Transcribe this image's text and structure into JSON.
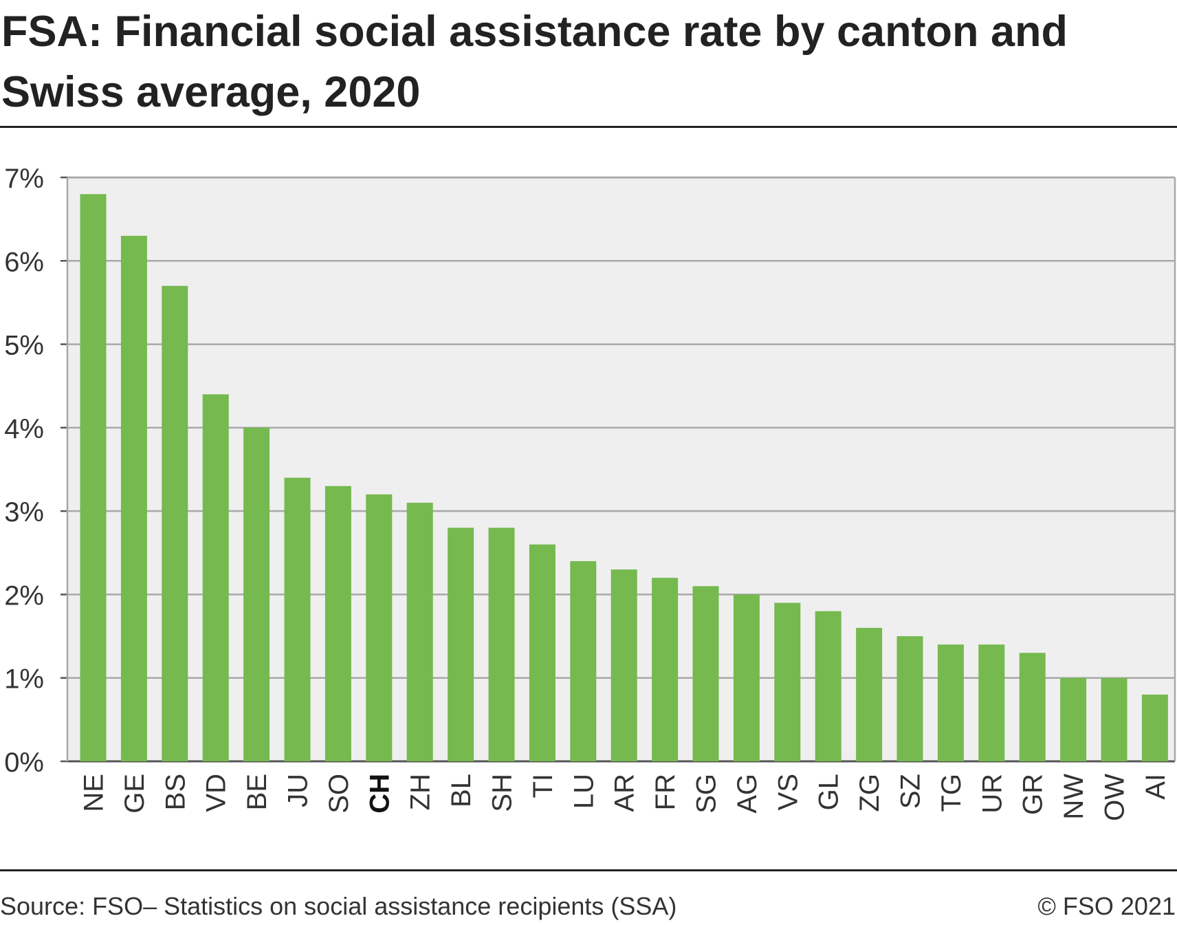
{
  "title": "FSA: Financial social assistance rate by canton and Swiss average, 2020",
  "footer": {
    "source": "Source: FSO– Statistics on social assistance recipients (SSA)",
    "copyright": "© FSO 2021"
  },
  "colors": {
    "bar": "#75b94f",
    "plot_background": "#efefef",
    "gridline": "#a8a8a8",
    "text": "#222222"
  },
  "chart_data": {
    "type": "bar",
    "title": "FSA: Financial social assistance rate by canton and Swiss average, 2020",
    "categories": [
      "NE",
      "GE",
      "BS",
      "VD",
      "BE",
      "JU",
      "SO",
      "CH",
      "ZH",
      "BL",
      "SH",
      "TI",
      "LU",
      "AR",
      "FR",
      "SG",
      "AG",
      "VS",
      "GL",
      "ZG",
      "SZ",
      "TG",
      "UR",
      "GR",
      "NW",
      "OW",
      "AI"
    ],
    "values": [
      6.8,
      6.3,
      5.7,
      4.4,
      4.0,
      3.4,
      3.3,
      3.2,
      3.1,
      2.8,
      2.8,
      2.6,
      2.4,
      2.3,
      2.2,
      2.1,
      2.0,
      1.9,
      1.8,
      1.6,
      1.5,
      1.4,
      1.4,
      1.3,
      1.0,
      1.0,
      0.8
    ],
    "highlighted_category": "CH",
    "ylim": [
      0,
      7
    ],
    "yticks": [
      "0%",
      "1%",
      "2%",
      "3%",
      "4%",
      "5%",
      "6%",
      "7%"
    ],
    "xlabel": "",
    "ylabel": "",
    "grid": true,
    "legend": "none"
  }
}
